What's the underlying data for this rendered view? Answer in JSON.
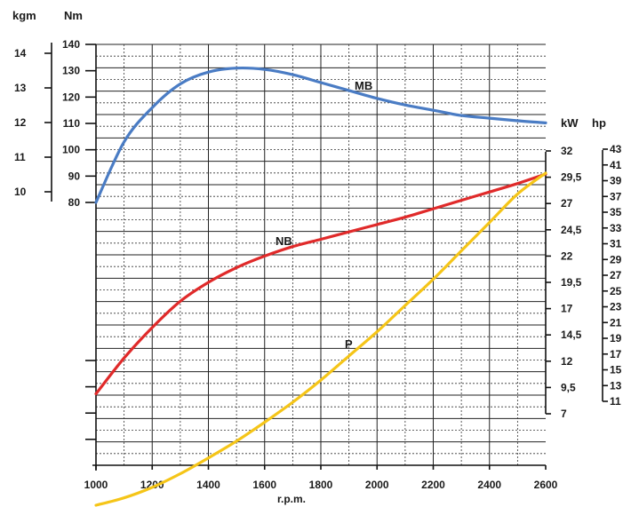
{
  "chart_data": {
    "type": "line",
    "xlabel": "r.p.m.",
    "x_ticks": [
      1000,
      1200,
      1400,
      1600,
      1800,
      2000,
      2200,
      2400,
      2600
    ],
    "xlim": [
      1000,
      2600
    ],
    "left_axes": {
      "nm_label": "Nm",
      "kgm_label": "kgm",
      "nm_ticks": [
        80,
        90,
        100,
        110,
        120,
        130,
        140
      ],
      "kgm_ticks": [
        10,
        11,
        12,
        13,
        14
      ],
      "nm_range": [
        80,
        140
      ]
    },
    "right_axes": {
      "kw_label": "kW",
      "hp_label": "hp",
      "kw_ticks": [
        "7",
        "9,5",
        "12",
        "14,5",
        "17",
        "19,5",
        "22",
        "24,5",
        "27",
        "29,5",
        "32"
      ],
      "hp_ticks": [
        "11",
        "13",
        "15",
        "17",
        "19",
        "21",
        "23",
        "25",
        "27",
        "29",
        "31",
        "33",
        "35",
        "37",
        "39",
        "41",
        "43"
      ],
      "kw_range": [
        7,
        32
      ]
    },
    "series": [
      {
        "name": "MB",
        "color": "#4a7cc4",
        "axis": "Nm",
        "x": [
          1000,
          1100,
          1200,
          1300,
          1400,
          1500,
          1600,
          1700,
          1800,
          1900,
          2000,
          2100,
          2200,
          2300,
          2400,
          2500,
          2600
        ],
        "values": [
          80,
          103,
          116,
          125,
          129.5,
          131,
          130.5,
          128.5,
          125.5,
          122.5,
          119.5,
          117,
          115,
          113,
          112,
          111,
          110.2
        ]
      },
      {
        "name": "NB",
        "color": "#e02a2a",
        "axis": "kW",
        "x": [
          1000,
          1100,
          1200,
          1300,
          1400,
          1500,
          1600,
          1700,
          1800,
          1900,
          2000,
          2100,
          2200,
          2300,
          2400,
          2500,
          2600
        ],
        "values": [
          8.9,
          12.3,
          15.2,
          17.7,
          19.5,
          20.9,
          22.0,
          22.9,
          23.6,
          24.3,
          25.0,
          25.7,
          26.5,
          27.3,
          28.1,
          28.9,
          29.8
        ]
      },
      {
        "name": "P",
        "color": "#f5c518",
        "axis": "kW",
        "x": [
          1000,
          1100,
          1200,
          1300,
          1400,
          1500,
          1600,
          1700,
          1800,
          1900,
          2000,
          2100,
          2200,
          2300,
          2400,
          2500,
          2600
        ],
        "values": [
          -1.7,
          -1.0,
          0.0,
          1.3,
          2.8,
          4.4,
          6.2,
          8.1,
          10.2,
          12.5,
          14.8,
          17.3,
          19.8,
          22.5,
          25.2,
          27.9,
          29.9
        ]
      }
    ],
    "labels": {
      "mb": "MB",
      "nb": "NB",
      "p": "P"
    }
  }
}
